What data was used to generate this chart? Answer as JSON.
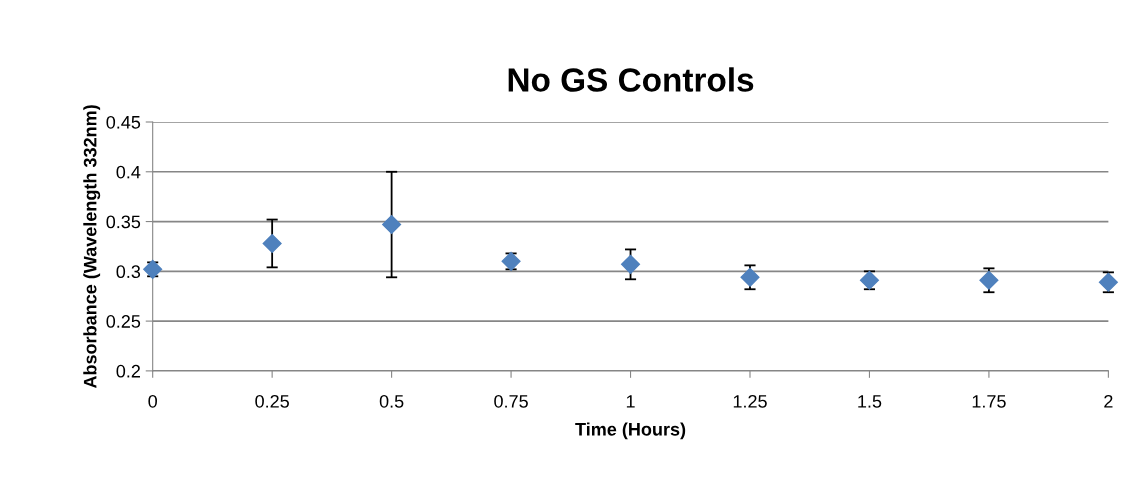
{
  "chart_data": {
    "type": "scatter",
    "title": "No GS Controls",
    "xlabel": "Time (Hours)",
    "ylabel": "Absorbance (Wavelength 332nm)",
    "x": [
      0,
      0.25,
      0.5,
      0.75,
      1,
      1.25,
      1.5,
      1.75,
      2
    ],
    "series": [
      {
        "color": "#4f81bd",
        "values": [
          0.302,
          0.328,
          0.347,
          0.31,
          0.307,
          0.294,
          0.291,
          0.291,
          0.289
        ],
        "errors": [
          0.007,
          0.024,
          0.053,
          0.008,
          0.015,
          0.012,
          0.009,
          0.012,
          0.01
        ]
      }
    ],
    "marker": "diamond",
    "xlim": [
      0,
      2
    ],
    "xticks": [
      0,
      0.25,
      0.5,
      0.75,
      1,
      1.25,
      1.5,
      1.75,
      2
    ],
    "ylim": [
      0.2,
      0.45
    ],
    "yticks": [
      0.2,
      0.25,
      0.3,
      0.35,
      0.4,
      0.45
    ],
    "grid": "y"
  }
}
